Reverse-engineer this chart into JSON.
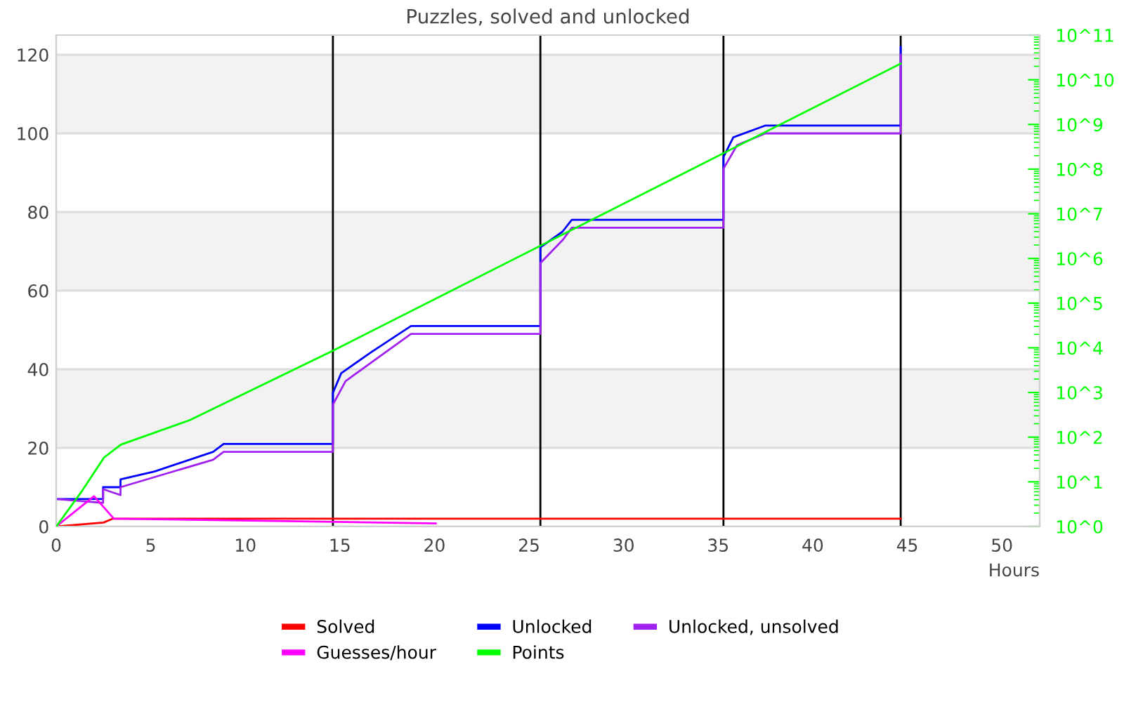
{
  "chart_data": {
    "type": "line",
    "title": "Puzzles, solved and unlocked",
    "xlabel": "Hours",
    "xlim": [
      0,
      52
    ],
    "xticks": [
      0,
      5,
      10,
      15,
      20,
      25,
      30,
      35,
      40,
      45,
      50
    ],
    "ylim": [
      0,
      125
    ],
    "yticks": [
      0,
      20,
      40,
      60,
      80,
      100,
      120
    ],
    "y2lim": [
      1,
      100000000000.0
    ],
    "y2ticks": [
      {
        "value": 1,
        "label": "10^0"
      },
      {
        "value": 10,
        "label": "10^1"
      },
      {
        "value": 100,
        "label": "10^2"
      },
      {
        "value": 1000,
        "label": "10^3"
      },
      {
        "value": 10000,
        "label": "10^4"
      },
      {
        "value": 100000,
        "label": "10^5"
      },
      {
        "value": 1000000,
        "label": "10^6"
      },
      {
        "value": 10000000,
        "label": "10^7"
      },
      {
        "value": 100000000,
        "label": "10^8"
      },
      {
        "value": 1000000000,
        "label": "10^9"
      },
      {
        "value": 10000000000,
        "label": "10^10"
      },
      {
        "value": 100000000000,
        "label": "10^11"
      }
    ],
    "log": "y2",
    "grid": "y",
    "legend": "bottom",
    "marker": "none",
    "line_style": "solid",
    "bands": [
      {
        "axis": "y",
        "from": 20,
        "to": 40,
        "color": "#f2f2f2"
      },
      {
        "axis": "y",
        "from": 60,
        "to": 80,
        "color": "#f2f2f2"
      },
      {
        "axis": "y",
        "from": 100,
        "to": 120,
        "color": "#f2f2f2"
      }
    ],
    "ref_lines": [
      {
        "axis": "x",
        "value": 14.63,
        "color": "#000000"
      },
      {
        "axis": "x",
        "value": 25.6,
        "color": "#000000"
      },
      {
        "axis": "x",
        "value": 35.28,
        "color": "#000000"
      },
      {
        "axis": "x",
        "value": 44.65,
        "color": "#000000"
      }
    ],
    "series": [
      {
        "name": "Solved",
        "color": "#ff0000",
        "x": [
          0,
          2.5,
          3.0,
          44.65
        ],
        "values": [
          0,
          1,
          2,
          2
        ]
      },
      {
        "name": "Unlocked",
        "color": "#0000ff",
        "x": [
          0,
          2.48,
          2.48,
          3.4,
          3.4,
          5.2,
          8.3,
          8.85,
          14.63,
          14.63,
          15.07,
          16.7,
          18.76,
          25.6,
          25.6,
          26.77,
          27.26,
          35.28,
          35.28,
          35.8,
          37.5,
          44.65,
          44.65
        ],
        "values": [
          7,
          7,
          10,
          10,
          12,
          14,
          19,
          21,
          21,
          34,
          39,
          44.5,
          51,
          51,
          71,
          75,
          78,
          78,
          94,
          99,
          102,
          102,
          122
        ]
      },
      {
        "name": "Unlocked, unsolved",
        "color": "#a020f0",
        "x": [
          0,
          2.48,
          2.48,
          3.4,
          3.4,
          8.3,
          8.85,
          14.63,
          14.63,
          15.3,
          18.76,
          25.6,
          25.6,
          26.8,
          27.26,
          35.28,
          35.28,
          36.0,
          37.5,
          44.65,
          44.65
        ],
        "values": [
          7,
          6,
          9.5,
          8,
          10,
          17,
          19,
          19,
          31,
          37,
          49,
          49,
          67,
          73,
          76,
          76,
          91,
          97,
          100,
          100,
          120
        ]
      },
      {
        "name": "Guesses/hour",
        "color": "#ff00ff",
        "x": [
          0,
          2.0,
          3.05,
          20.07
        ],
        "values": [
          0,
          7.7,
          2,
          0.8
        ]
      },
      {
        "name": "Points",
        "color": "#00ff00",
        "axis": "y2",
        "x": [
          0,
          1.36,
          2.53,
          3.42,
          7.06,
          14.6,
          44.65
        ],
        "values": [
          1,
          6.2,
          35,
          68,
          240,
          8500,
          23000000000.0
        ]
      }
    ]
  }
}
